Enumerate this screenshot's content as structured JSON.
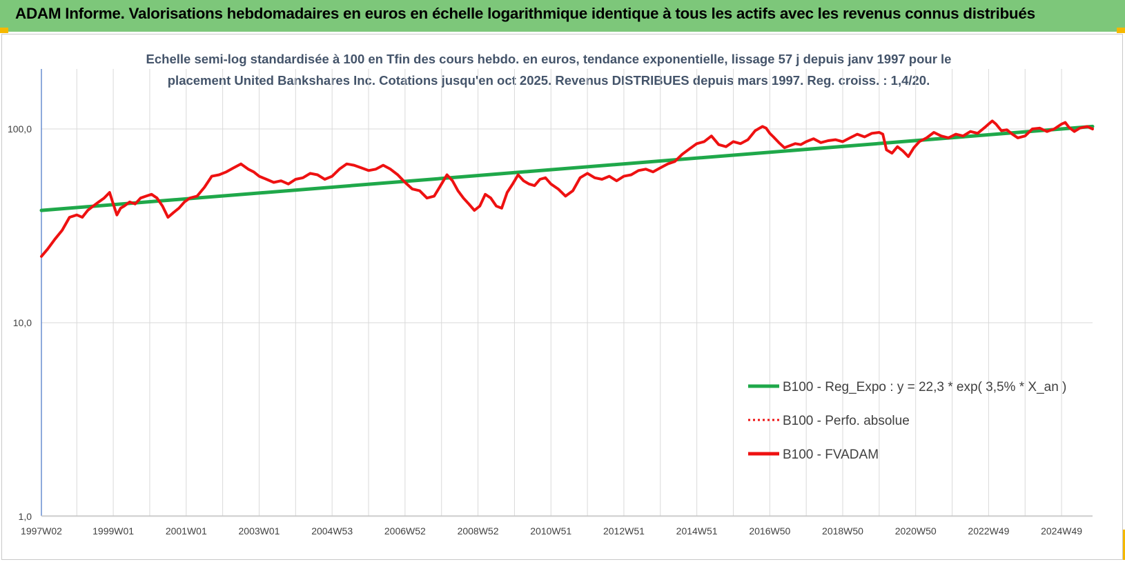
{
  "banner": {
    "title": "ADAM Informe. Valorisations hebdomadaires en euros en échelle logarithmique identique à tous les actifs avec les revenus connus distribués"
  },
  "colors": {
    "banner": "#7dc77a",
    "corner": "#f5b800",
    "regression": "#1fa84a",
    "fvadam": "#ee1111",
    "subtitle": "#44546a",
    "grid": "#d9d9d9",
    "axis": "#4472c4"
  },
  "chart_data": {
    "type": "line",
    "title": "Echelle semi-log standardisée à 100 en Tfin des cours hebdo. en euros, tendance exponentielle, lissage 57 j depuis janv 1997 pour le placement United Bankshares Inc.  Cotations jusqu'en oct 2025. Revenus DISTRIBUES depuis mars 1997. Reg. croiss. : 1,4/20.",
    "title_lines": [
      "Echelle semi-log standardisée à 100 en Tfin des cours hebdo. en euros, tendance exponentielle, lissage 57 j depuis janv 1997 pour le",
      "placement United Bankshares Inc.  Cotations jusqu'en oct 2025. Revenus DISTRIBUES depuis mars 1997. Reg. croiss. : 1,4/20."
    ],
    "y_scale": "log",
    "ylim": [
      1,
      200
    ],
    "y_ticks": [
      {
        "value": 1,
        "label": "1,0"
      },
      {
        "value": 10,
        "label": "10,0"
      },
      {
        "value": 100,
        "label": "100,0"
      }
    ],
    "xlim": [
      1997.03,
      2025.85
    ],
    "x_ticks": [
      {
        "value": 1997.03,
        "label": "1997W02"
      },
      {
        "value": 1999.0,
        "label": "1999W01"
      },
      {
        "value": 2001.0,
        "label": "2001W01"
      },
      {
        "value": 2003.0,
        "label": "2003W01"
      },
      {
        "value": 2005.0,
        "label": "2004W53"
      },
      {
        "value": 2007.0,
        "label": "2006W52"
      },
      {
        "value": 2009.0,
        "label": "2008W52"
      },
      {
        "value": 2011.0,
        "label": "2010W51"
      },
      {
        "value": 2013.0,
        "label": "2012W51"
      },
      {
        "value": 2015.0,
        "label": "2014W51"
      },
      {
        "value": 2017.0,
        "label": "2016W50"
      },
      {
        "value": 2019.0,
        "label": "2018W50"
      },
      {
        "value": 2021.0,
        "label": "2020W50"
      },
      {
        "value": 2023.0,
        "label": "2022W49"
      },
      {
        "value": 2025.0,
        "label": "2024W49"
      }
    ],
    "x_minor_grid": [
      1998.0,
      2000.0,
      2002.0,
      2004.0,
      2006.0,
      2008.0,
      2010.0,
      2012.0,
      2014.0,
      2016.0,
      2018.0,
      2020.0,
      2022.0,
      2024.0
    ],
    "legend_position": "bottom-right",
    "series": [
      {
        "name": "B100 - Reg_Expo : y = 22,3 * exp( 3,5% *  X_an )",
        "style": "solid",
        "color": "#1fa84a",
        "x": [
          1997.03,
          2025.85
        ],
        "y": [
          38.0,
          103.0
        ]
      },
      {
        "name": "B100 - Perfo. absolue",
        "style": "dotted",
        "color": "#ee1111",
        "x": [],
        "y": []
      },
      {
        "name": "B100 - FVADAM",
        "style": "solid",
        "color": "#ee1111",
        "x": [
          1997.03,
          1997.2,
          1997.4,
          1997.6,
          1997.8,
          1998.0,
          1998.15,
          1998.3,
          1998.45,
          1998.6,
          1998.75,
          1998.9,
          1999.0,
          1999.1,
          1999.2,
          1999.3,
          1999.45,
          1999.6,
          1999.75,
          1999.9,
          2000.05,
          2000.2,
          2000.35,
          2000.5,
          2000.65,
          2000.8,
          2000.95,
          2001.1,
          2001.3,
          2001.5,
          2001.7,
          2001.9,
          2002.1,
          2002.3,
          2002.5,
          2002.7,
          2002.85,
          2003.0,
          2003.2,
          2003.4,
          2003.6,
          2003.8,
          2004.0,
          2004.2,
          2004.4,
          2004.6,
          2004.8,
          2005.0,
          2005.2,
          2005.4,
          2005.6,
          2005.8,
          2006.0,
          2006.2,
          2006.4,
          2006.6,
          2006.8,
          2007.0,
          2007.2,
          2007.4,
          2007.6,
          2007.8,
          2008.0,
          2008.15,
          2008.3,
          2008.45,
          2008.6,
          2008.75,
          2008.9,
          2009.05,
          2009.2,
          2009.35,
          2009.5,
          2009.65,
          2009.8,
          2009.95,
          2010.1,
          2010.25,
          2010.4,
          2010.55,
          2010.7,
          2010.85,
          2011.0,
          2011.2,
          2011.4,
          2011.6,
          2011.8,
          2012.0,
          2012.2,
          2012.4,
          2012.6,
          2012.8,
          2013.0,
          2013.2,
          2013.4,
          2013.6,
          2013.8,
          2014.0,
          2014.2,
          2014.4,
          2014.6,
          2014.8,
          2015.0,
          2015.2,
          2015.4,
          2015.6,
          2015.8,
          2016.0,
          2016.2,
          2016.4,
          2016.6,
          2016.8,
          2016.9,
          2017.0,
          2017.1,
          2017.25,
          2017.4,
          2017.55,
          2017.7,
          2017.85,
          2018.0,
          2018.2,
          2018.4,
          2018.6,
          2018.8,
          2019.0,
          2019.2,
          2019.4,
          2019.6,
          2019.8,
          2020.0,
          2020.1,
          2020.2,
          2020.35,
          2020.5,
          2020.65,
          2020.8,
          2020.95,
          2021.1,
          2021.3,
          2021.5,
          2021.7,
          2021.9,
          2022.1,
          2022.3,
          2022.5,
          2022.7,
          2022.9,
          2023.0,
          2023.1,
          2023.2,
          2023.35,
          2023.5,
          2023.65,
          2023.8,
          2024.0,
          2024.2,
          2024.4,
          2024.6,
          2024.8,
          2025.0,
          2025.1,
          2025.2,
          2025.35,
          2025.5,
          2025.7,
          2025.85
        ],
        "y": [
          22,
          24,
          27,
          30,
          35,
          36,
          35,
          38,
          40,
          42,
          44,
          47,
          41,
          36,
          39,
          40,
          42,
          41,
          44,
          45,
          46,
          44,
          40,
          35,
          37,
          39,
          42,
          44,
          45,
          50,
          57,
          58,
          60,
          63,
          66,
          62,
          60,
          57,
          55,
          53,
          54,
          52,
          55,
          56,
          59,
          58,
          55,
          57,
          62,
          66,
          65,
          63,
          61,
          62,
          65,
          62,
          58,
          53,
          49,
          48,
          44,
          45,
          52,
          58,
          54,
          48,
          44,
          41,
          38,
          40,
          46,
          44,
          40,
          39,
          47,
          52,
          58,
          54,
          52,
          51,
          55,
          56,
          52,
          49,
          45,
          48,
          56,
          59,
          56,
          55,
          57,
          54,
          57,
          58,
          61,
          62,
          60,
          63,
          66,
          68,
          74,
          79,
          84,
          86,
          92,
          83,
          81,
          86,
          84,
          88,
          98,
          103,
          101,
          95,
          91,
          85,
          80,
          82,
          84,
          83,
          86,
          89,
          85,
          87,
          88,
          86,
          90,
          94,
          91,
          95,
          96,
          94,
          78,
          75,
          81,
          77,
          72,
          80,
          86,
          90,
          96,
          92,
          90,
          94,
          92,
          97,
          95,
          102,
          106,
          110,
          106,
          98,
          99,
          94,
          90,
          92,
          100,
          101,
          97,
          100,
          106,
          108,
          102,
          97,
          101,
          103,
          100
        ]
      }
    ]
  }
}
